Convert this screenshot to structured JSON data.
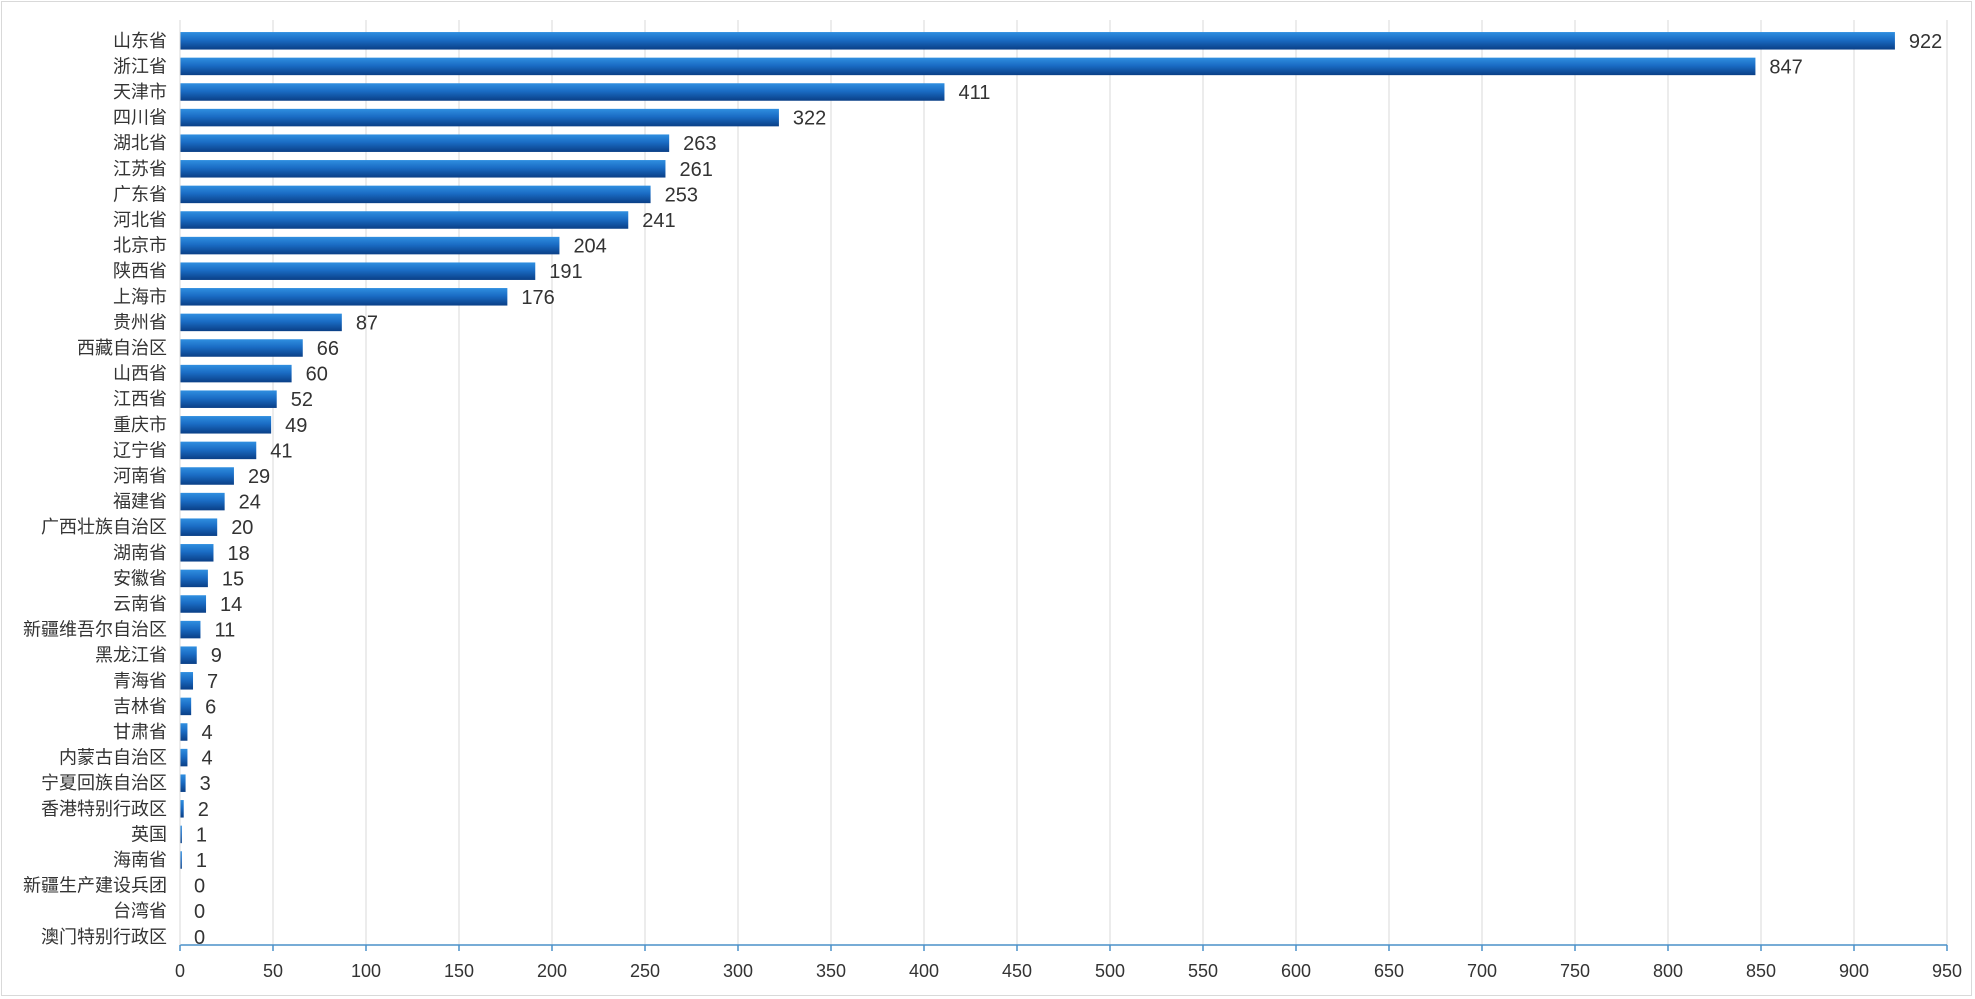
{
  "chart_data": {
    "type": "bar",
    "orientation": "horizontal",
    "title": "",
    "xlabel": "",
    "ylabel": "",
    "categories": [
      "山东省",
      "浙江省",
      "天津市",
      "四川省",
      "湖北省",
      "江苏省",
      "广东省",
      "河北省",
      "北京市",
      "陕西省",
      "上海市",
      "贵州省",
      "西藏自治区",
      "山西省",
      "江西省",
      "重庆市",
      "辽宁省",
      "河南省",
      "福建省",
      "广西壮族自治区",
      "湖南省",
      "安徽省",
      "云南省",
      "新疆维吾尔自治区",
      "黑龙江省",
      "青海省",
      "吉林省",
      "甘肃省",
      "内蒙古自治区",
      "宁夏回族自治区",
      "香港特别行政区",
      "英国",
      "海南省",
      "新疆生产建设兵团",
      "台湾省",
      "澳门特别行政区"
    ],
    "values": [
      922,
      847,
      411,
      322,
      263,
      261,
      253,
      241,
      204,
      191,
      176,
      87,
      66,
      60,
      52,
      49,
      41,
      29,
      24,
      20,
      18,
      15,
      14,
      11,
      9,
      7,
      6,
      4,
      4,
      3,
      2,
      1,
      1,
      0,
      0,
      0
    ],
    "xlim": [
      0,
      950
    ],
    "xticks": [
      0,
      50,
      100,
      150,
      200,
      250,
      300,
      350,
      400,
      450,
      500,
      550,
      600,
      650,
      700,
      750,
      800,
      850,
      900,
      950
    ],
    "grid": true,
    "legend": "none",
    "bar_color_light": "#2f8fe0",
    "bar_color_dark": "#0a3f86"
  }
}
